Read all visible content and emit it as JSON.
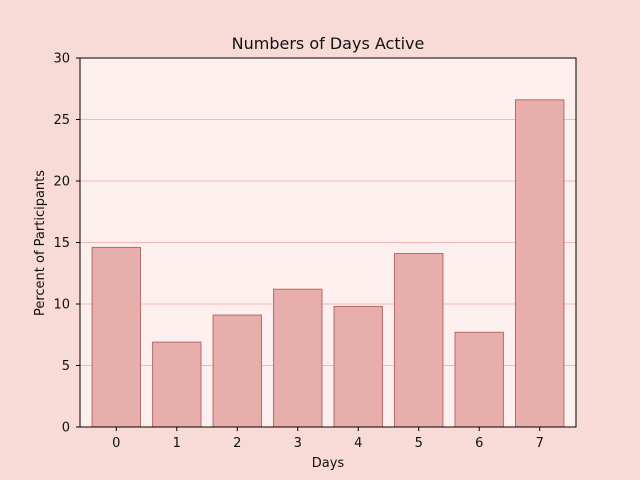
{
  "chart_data": {
    "type": "bar",
    "title": "Numbers of Days Active",
    "xlabel": "Days",
    "ylabel": "Percent of Participants",
    "categories": [
      "0",
      "1",
      "2",
      "3",
      "4",
      "5",
      "6",
      "7"
    ],
    "values": [
      14.6,
      6.9,
      9.1,
      11.2,
      9.8,
      14.1,
      7.7,
      26.6
    ],
    "ylim": [
      0,
      30
    ],
    "yticks": [
      "0",
      "5",
      "10",
      "15",
      "20",
      "25",
      "30"
    ],
    "ytick_values": [
      0,
      5,
      10,
      15,
      20,
      25,
      30
    ],
    "grid": true,
    "legend": "none"
  },
  "colors": {
    "figure_background": "#f8dbd7",
    "plot_background": "#fcefed",
    "bar_fill": "#e8aeac",
    "bar_edge": "#b36b68",
    "grid": "#f2b9b9",
    "axis": "#000000"
  }
}
